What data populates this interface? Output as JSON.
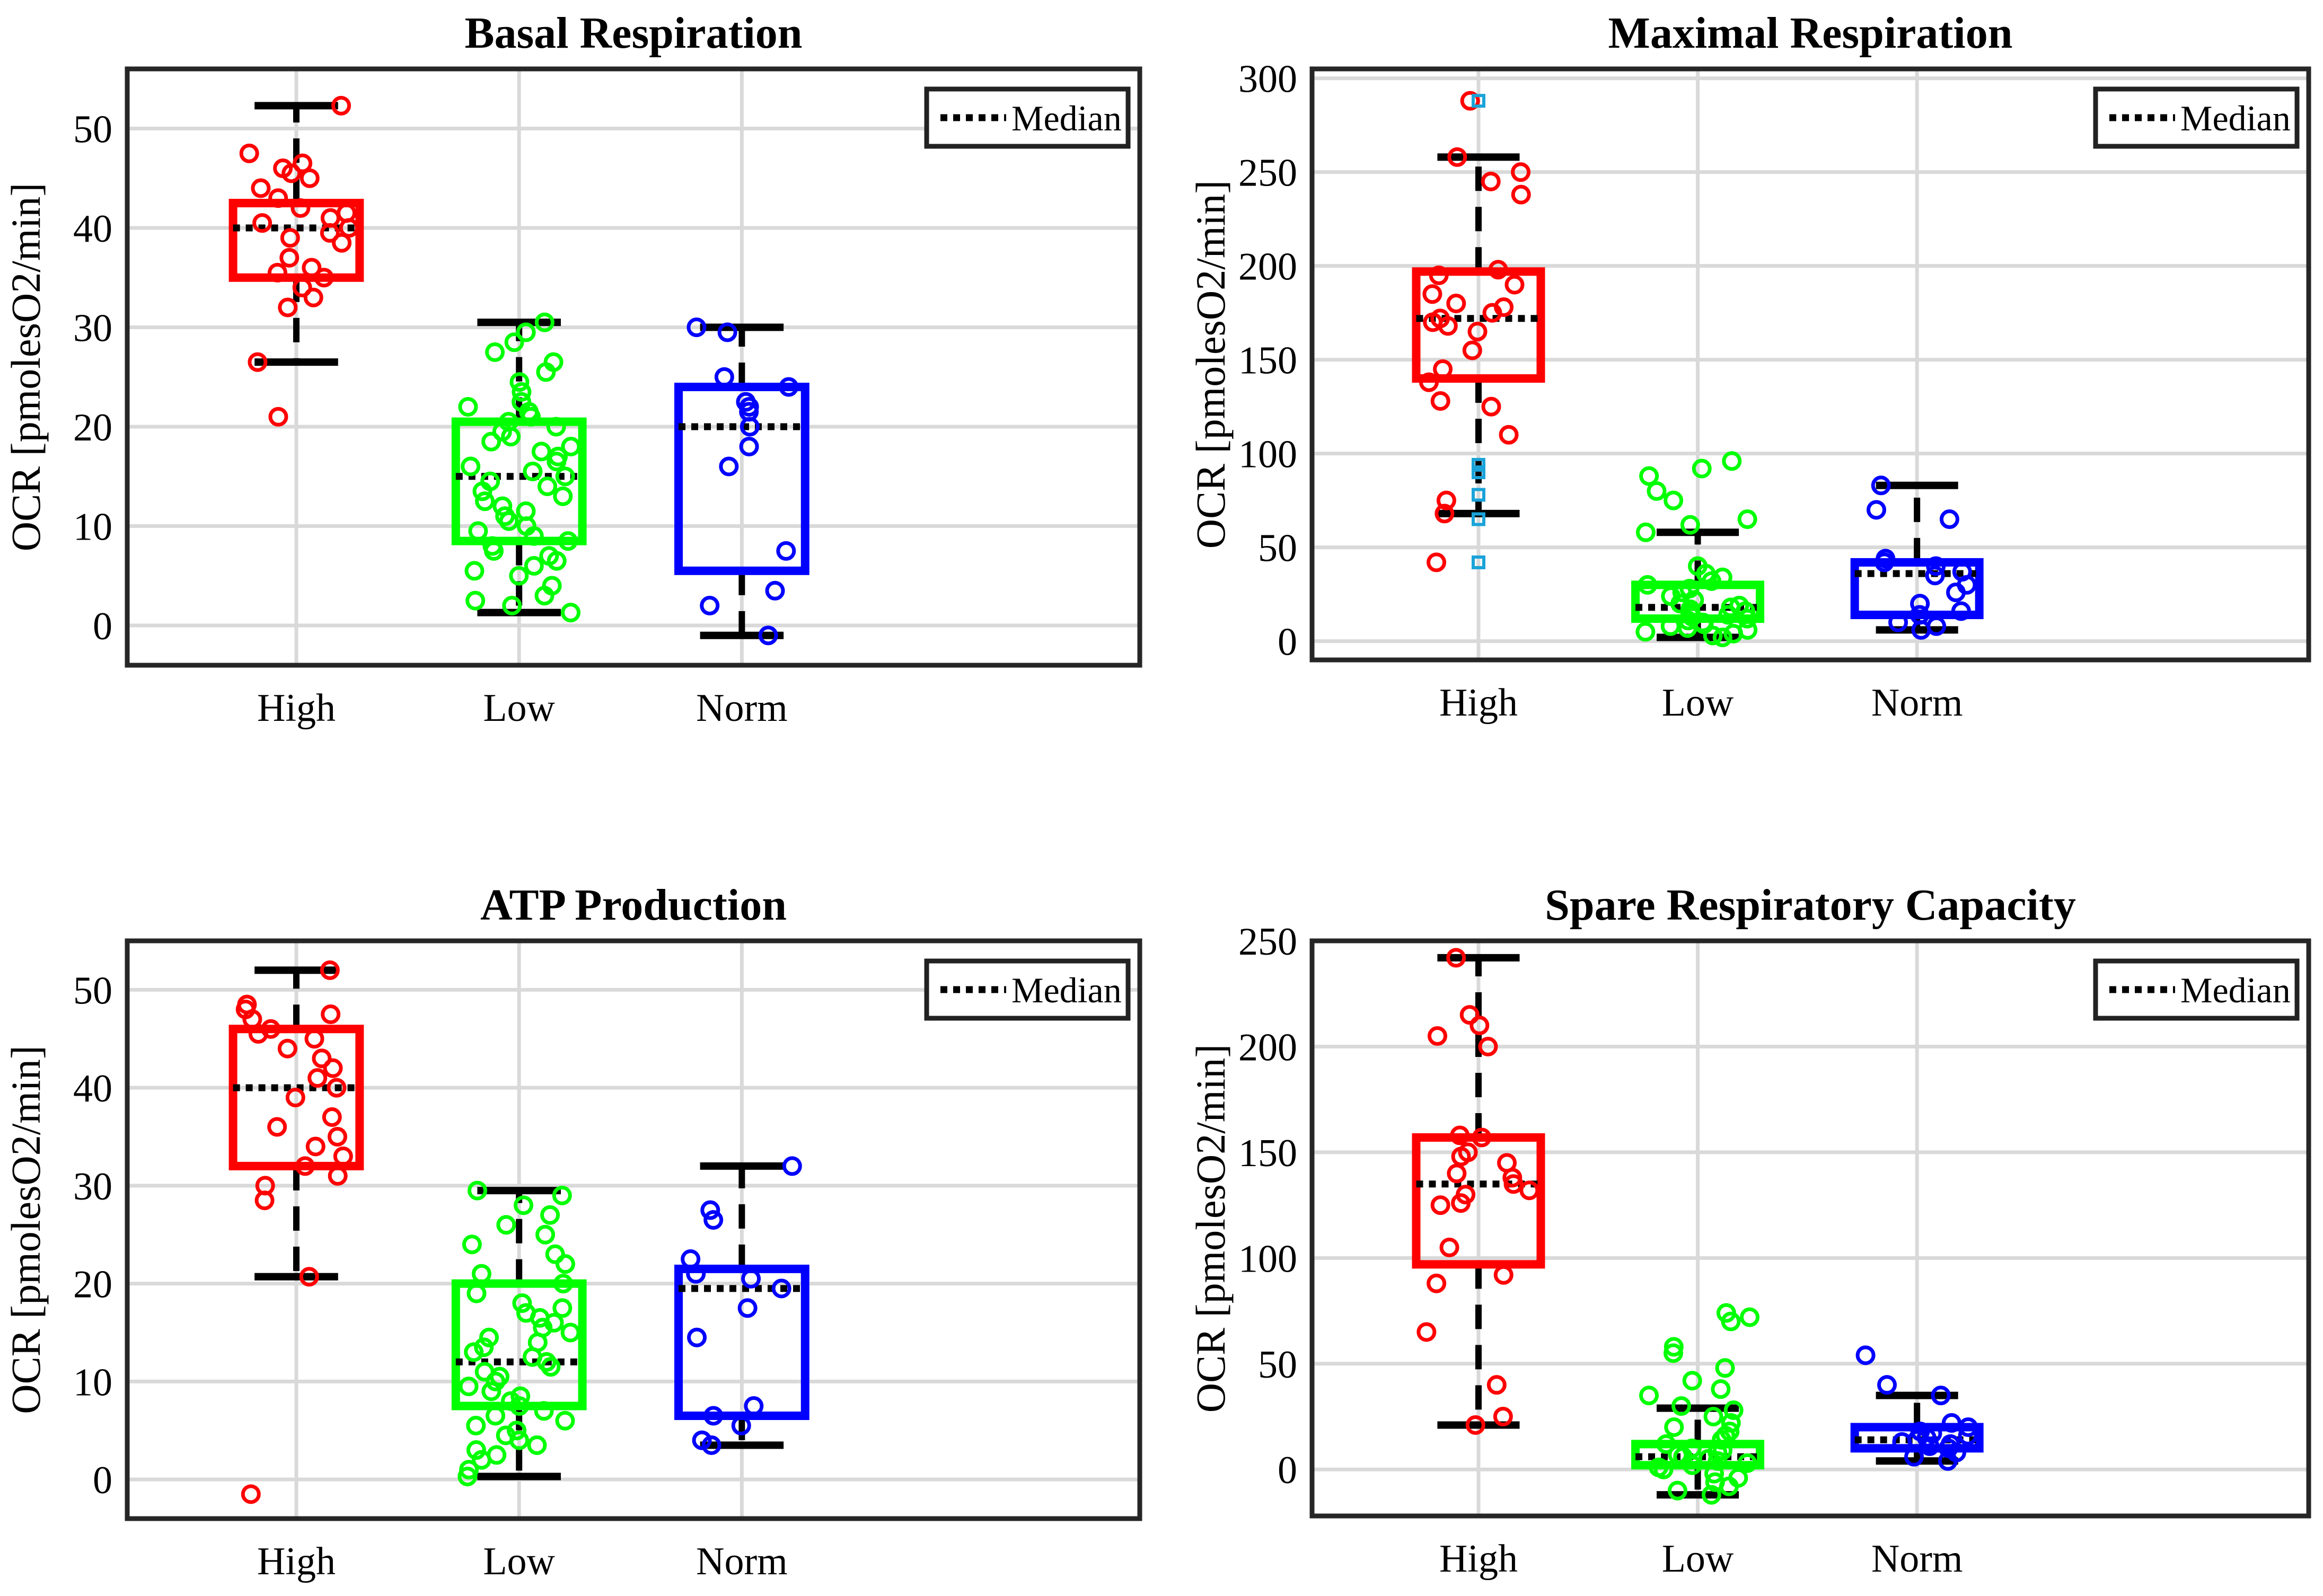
{
  "chart_data": [
    {
      "type": "box",
      "title": "Basal Respiration",
      "ylabel": "OCR [pmolesO2/min]",
      "xlabel": "",
      "categories": [
        "High",
        "Low",
        "Norm"
      ],
      "ylim": [
        -4,
        56
      ],
      "yticks": [
        0,
        10,
        20,
        30,
        40,
        50
      ],
      "grid": true,
      "legend": {
        "label": "Median",
        "placement": "top-right"
      },
      "boxes": [
        {
          "name": "High",
          "color": "#ff0000",
          "q1": 35,
          "median": 40,
          "q3": 42.5,
          "whisker_low": 26.5,
          "whisker_high": 52.3,
          "points": [
            52.3,
            47.5,
            46.5,
            46,
            45.5,
            45,
            44,
            43,
            42,
            41.5,
            41,
            40.5,
            40,
            39.5,
            39,
            38.5,
            37,
            36,
            35.5,
            35,
            34,
            33,
            32,
            26.5,
            21
          ]
        },
        {
          "name": "Low",
          "color": "#00ff00",
          "q1": 8.5,
          "median": 15,
          "q3": 20.5,
          "whisker_low": 1.3,
          "whisker_high": 30.5,
          "points": [
            30.5,
            29.5,
            28.5,
            27.5,
            26.5,
            25.5,
            24.5,
            23.5,
            22.5,
            22,
            21.5,
            21,
            20.5,
            20,
            19.5,
            19,
            18.5,
            18,
            17.5,
            17,
            16.5,
            16,
            15.5,
            15,
            14.5,
            14,
            13.5,
            13,
            12.5,
            12,
            11.5,
            11,
            10.5,
            10,
            9.5,
            9,
            8.5,
            8,
            7.5,
            7,
            6.5,
            6,
            5.5,
            5,
            4,
            3,
            2.5,
            2,
            1.3
          ]
        },
        {
          "name": "Norm",
          "color": "#0000ff",
          "q1": 5.5,
          "median": 20,
          "q3": 24,
          "whisker_low": -1,
          "whisker_high": 30,
          "points": [
            30,
            29.5,
            25,
            24,
            22.5,
            22,
            21.5,
            20,
            18,
            16,
            7.5,
            3.5,
            2,
            -1
          ]
        }
      ]
    },
    {
      "type": "box",
      "title": "Maximal Respiration",
      "ylabel": "OCR [pmolesO2/min]",
      "xlabel": "",
      "categories": [
        "High",
        "Low",
        "Norm"
      ],
      "ylim": [
        -10,
        305
      ],
      "yticks": [
        0,
        50,
        100,
        150,
        200,
        250,
        300
      ],
      "grid": true,
      "legend": {
        "label": "Median",
        "placement": "top-right"
      },
      "boxes": [
        {
          "name": "High",
          "color": "#ff0000",
          "q1": 140,
          "median": 172,
          "q3": 197,
          "whisker_low": 68,
          "whisker_high": 258,
          "points": [
            288,
            258,
            250,
            245,
            238,
            198,
            195,
            190,
            185,
            180,
            178,
            175,
            172,
            170,
            168,
            165,
            155,
            145,
            138,
            128,
            125,
            110,
            75,
            68,
            42
          ],
          "outliers": [
            288,
            94,
            90,
            78,
            65,
            42
          ]
        },
        {
          "name": "Low",
          "color": "#00ff00",
          "q1": 12,
          "median": 18,
          "q3": 30,
          "whisker_low": 2,
          "whisker_high": 58,
          "points": [
            96,
            92,
            88,
            80,
            75,
            65,
            62,
            58,
            40,
            36,
            34,
            32,
            30,
            28,
            26,
            24,
            22,
            20,
            19,
            18,
            17,
            16,
            15,
            14,
            13,
            12,
            11,
            10,
            9,
            8,
            7,
            6,
            5,
            4,
            3,
            2
          ]
        },
        {
          "name": "Norm",
          "color": "#0000ff",
          "q1": 14,
          "median": 36,
          "q3": 42,
          "whisker_low": 6,
          "whisker_high": 83,
          "points": [
            83,
            70,
            65,
            44,
            42,
            40,
            37,
            35,
            30,
            26,
            20,
            16,
            14,
            10,
            8,
            6
          ]
        }
      ]
    },
    {
      "type": "box",
      "title": "ATP Production",
      "ylabel": "OCR [pmolesO2/min]",
      "xlabel": "",
      "categories": [
        "High",
        "Low",
        "Norm"
      ],
      "ylim": [
        -4,
        55
      ],
      "yticks": [
        0,
        10,
        20,
        30,
        40,
        50
      ],
      "grid": true,
      "legend": {
        "label": "Median",
        "placement": "top-right"
      },
      "boxes": [
        {
          "name": "High",
          "color": "#ff0000",
          "q1": 32,
          "median": 40,
          "q3": 46,
          "whisker_low": 20.7,
          "whisker_high": 52,
          "points": [
            52,
            48.5,
            48,
            47.5,
            47,
            46,
            45.5,
            45,
            44,
            43,
            42,
            41,
            40,
            39,
            37,
            36,
            35,
            34,
            33,
            32,
            31,
            30,
            28.5,
            20.7,
            -1.5
          ]
        },
        {
          "name": "Low",
          "color": "#00ff00",
          "q1": 7.5,
          "median": 12,
          "q3": 20,
          "whisker_low": 0.3,
          "whisker_high": 29.5,
          "points": [
            29.5,
            29,
            28,
            27,
            26,
            25,
            24,
            23,
            22,
            21,
            20,
            19,
            18,
            17.5,
            17,
            16.5,
            16,
            15.5,
            15,
            14.5,
            14,
            13.5,
            13,
            12.5,
            12,
            11.5,
            11,
            10.5,
            10,
            9.5,
            9,
            8.5,
            8,
            7.5,
            7,
            6.5,
            6,
            5.5,
            5,
            4.5,
            4,
            3.5,
            3,
            2.5,
            2,
            1,
            0.3
          ]
        },
        {
          "name": "Norm",
          "color": "#0000ff",
          "q1": 6.5,
          "median": 19.5,
          "q3": 21.5,
          "whisker_low": 3.5,
          "whisker_high": 32,
          "points": [
            32,
            27.5,
            26.5,
            22.5,
            21,
            20.5,
            19.5,
            17.5,
            14.5,
            7.5,
            6.5,
            5.5,
            4,
            3.5
          ]
        }
      ]
    },
    {
      "type": "box",
      "title": "Spare Respiratory Capacity",
      "ylabel": "OCR [pmolesO2/min]",
      "xlabel": "",
      "categories": [
        "High",
        "Low",
        "Norm"
      ],
      "ylim": [
        -22,
        250
      ],
      "yticks": [
        0,
        50,
        100,
        150,
        200,
        250
      ],
      "grid": true,
      "legend": {
        "label": "Median",
        "placement": "top-right"
      },
      "boxes": [
        {
          "name": "High",
          "color": "#ff0000",
          "q1": 97,
          "median": 135,
          "q3": 157,
          "whisker_low": 21,
          "whisker_high": 242,
          "points": [
            242,
            215,
            210,
            205,
            200,
            158,
            157,
            150,
            148,
            145,
            140,
            138,
            135,
            132,
            130,
            126,
            125,
            105,
            92,
            88,
            65,
            40,
            25,
            21
          ]
        },
        {
          "name": "Low",
          "color": "#00ff00",
          "q1": 2,
          "median": 6,
          "q3": 12,
          "whisker_low": -12,
          "whisker_high": 29,
          "points": [
            74,
            72,
            70,
            58,
            55,
            48,
            42,
            38,
            35,
            30,
            28,
            25,
            22,
            20,
            18,
            16,
            14,
            12,
            10,
            9,
            8,
            7,
            6,
            5,
            4,
            3,
            2,
            1,
            0,
            -2,
            -4,
            -6,
            -8,
            -10,
            -12
          ]
        },
        {
          "name": "Norm",
          "color": "#0000ff",
          "q1": 10,
          "median": 14,
          "q3": 20,
          "whisker_low": 4,
          "whisker_high": 35,
          "points": [
            54,
            40,
            35,
            22,
            20,
            18,
            17,
            16,
            15,
            14,
            13,
            12,
            11,
            10,
            8,
            6,
            4
          ]
        }
      ]
    }
  ]
}
